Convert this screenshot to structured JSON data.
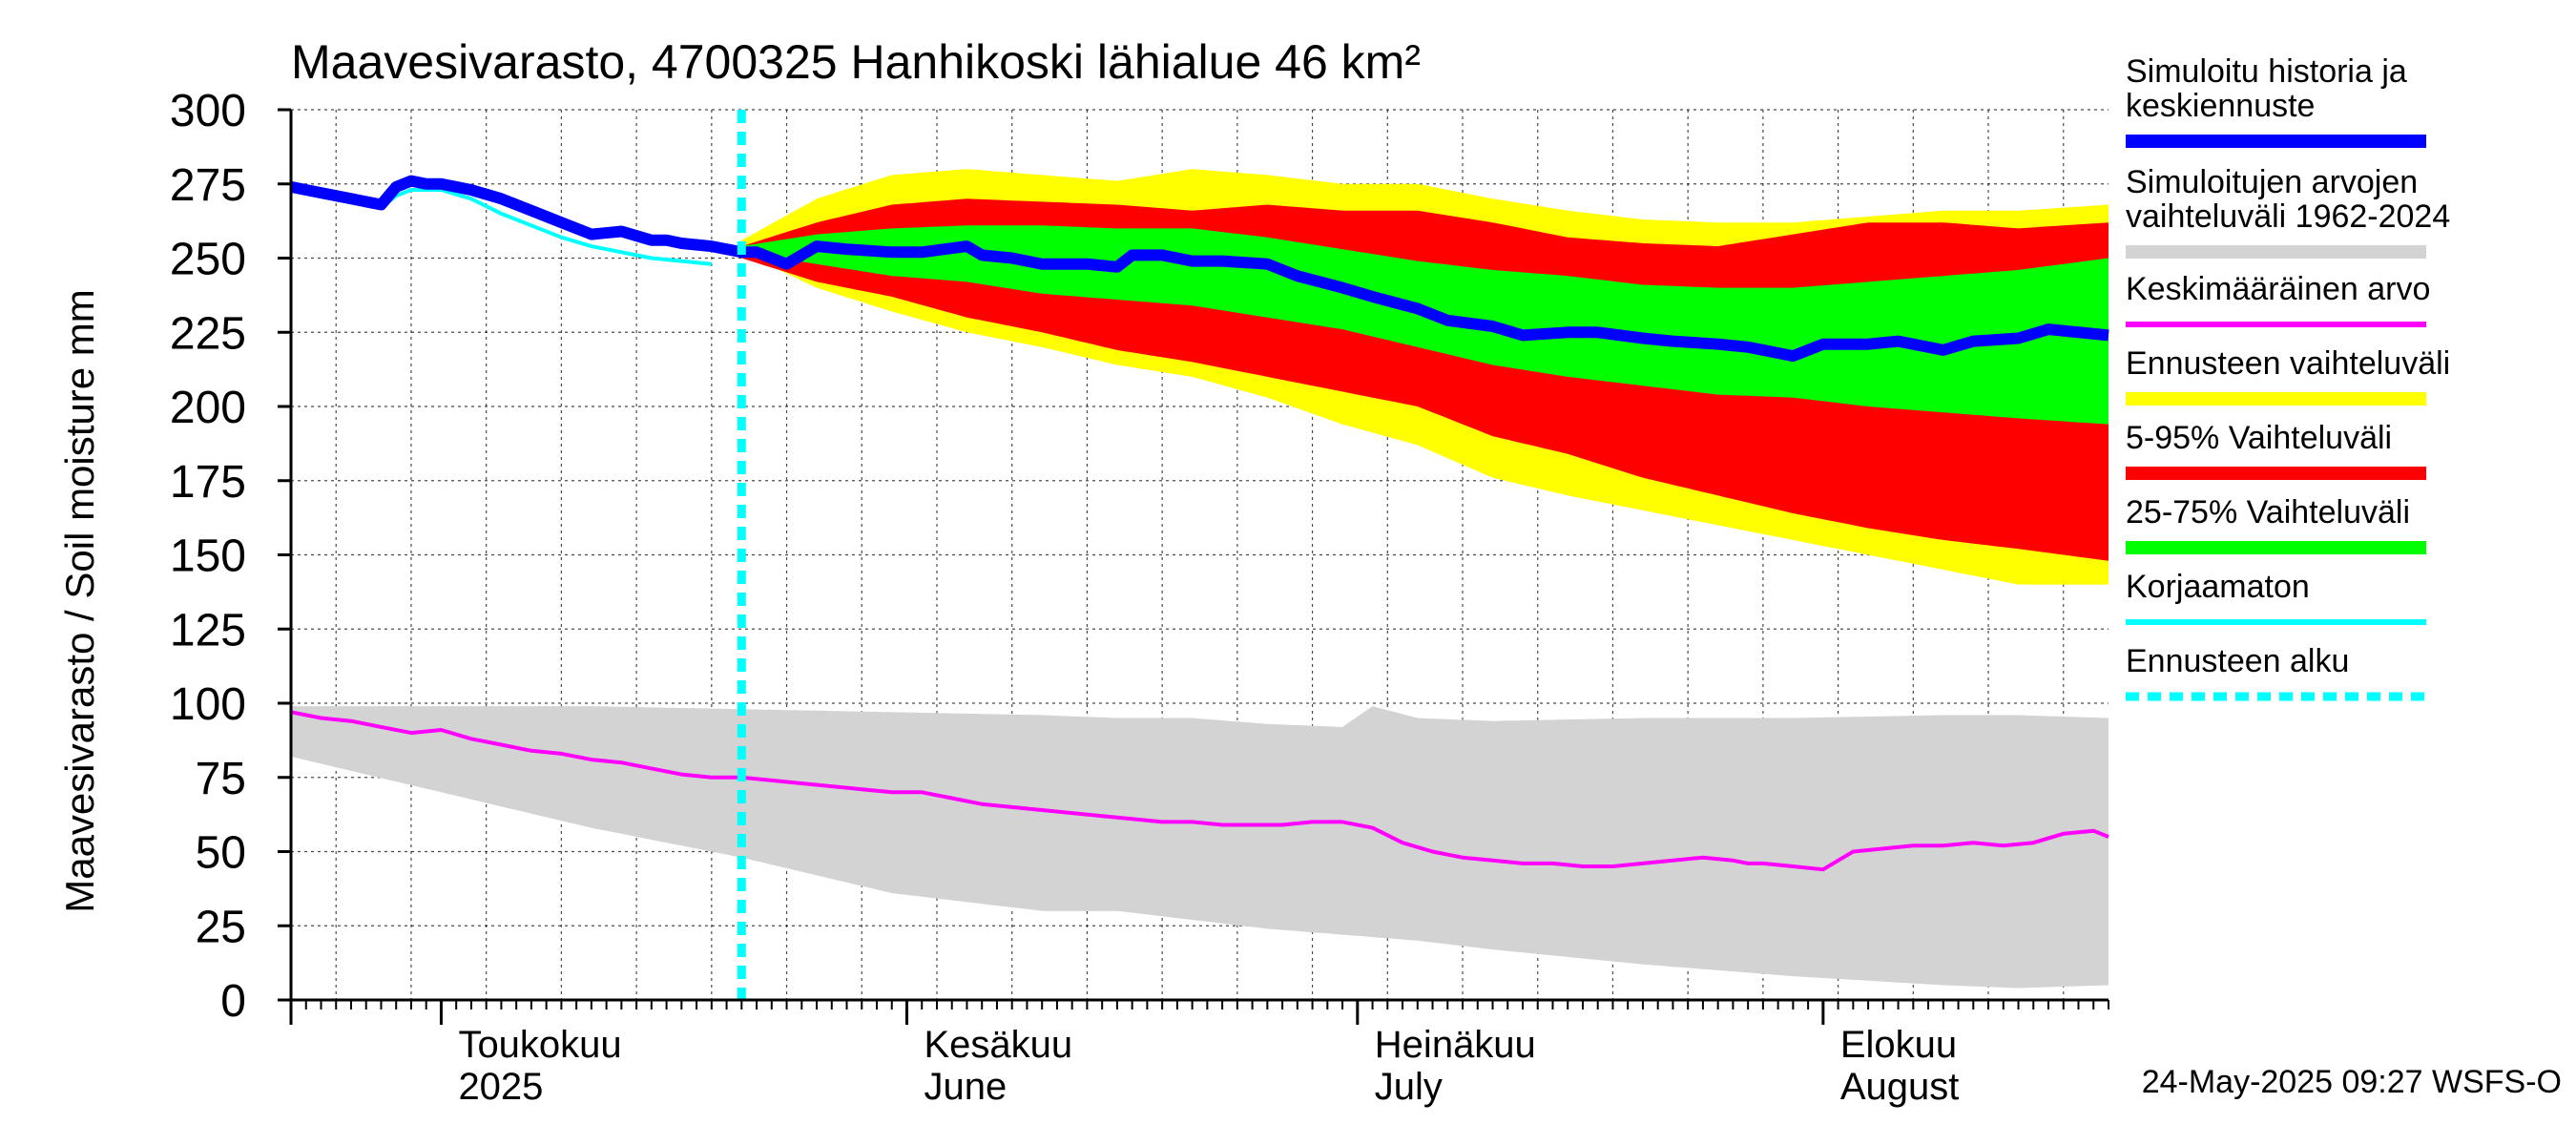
{
  "chart_data": {
    "type": "area",
    "title": "Maavesivarasto, 4700325 Hanhikoski lähialue 46 km²",
    "ylabel": "Maavesivarasto / Soil moisture   mm",
    "ylim": [
      0,
      300
    ],
    "yticks": [
      0,
      25,
      50,
      75,
      100,
      125,
      150,
      175,
      200,
      225,
      250,
      275,
      300
    ],
    "x_day_range": [
      0,
      121
    ],
    "forecast_start_day": 30,
    "month_ticks": [
      {
        "day": 0,
        "fi": "",
        "en": ""
      },
      {
        "day": 10,
        "fi": "Toukokuu",
        "en": "2025"
      },
      {
        "day": 41,
        "fi": "Kesäkuu",
        "en": "June"
      },
      {
        "day": 71,
        "fi": "Heinäkuu",
        "en": "July"
      },
      {
        "day": 102,
        "fi": "Elokuu",
        "en": "August"
      }
    ],
    "legend": [
      {
        "label": "Simuloitu historia ja keskiennuste",
        "lines": [
          "Simuloitu historia ja",
          "keskiennuste"
        ],
        "color": "#0000ff",
        "style": "thick"
      },
      {
        "label": "Simuloitujen arvojen vaihteluväli 1962-2024",
        "lines": [
          "Simuloitujen arvojen",
          "vaihteluväli 1962-2024"
        ],
        "color": "#d3d3d3",
        "style": "band"
      },
      {
        "label": "Keskimääräinen arvo",
        "lines": [
          "Keskimääräinen arvo"
        ],
        "color": "#ff00ff",
        "style": "thin"
      },
      {
        "label": "Ennusteen vaihteluväli",
        "lines": [
          "Ennusteen vaihteluväli"
        ],
        "color": "#ffff00",
        "style": "band"
      },
      {
        "label": "5-95% Vaihteluväli",
        "lines": [
          "5-95% Vaihteluväli"
        ],
        "color": "#ff0000",
        "style": "band"
      },
      {
        "label": "25-75% Vaihteluväli",
        "lines": [
          "25-75% Vaihteluväli"
        ],
        "color": "#00ff00",
        "style": "band"
      },
      {
        "label": "Korjaamaton",
        "lines": [
          "Korjaamaton"
        ],
        "color": "#00ffff",
        "style": "thin"
      },
      {
        "label": "Ennusteen alku",
        "lines": [
          "Ennusteen alku"
        ],
        "color": "#00ffff",
        "style": "dashed"
      }
    ],
    "footer": "24-May-2025 09:27 WSFS-O",
    "series": [
      {
        "name": "Simulated history and median forecast",
        "x": [
          0,
          2,
          4,
          6,
          7,
          8,
          9,
          10,
          12,
          14,
          16,
          18,
          20,
          22,
          24,
          25,
          26,
          28,
          30,
          31,
          33,
          35,
          37,
          40,
          42,
          45,
          46,
          48,
          50,
          53,
          55,
          56,
          58,
          60,
          62,
          65,
          67,
          70,
          72,
          75,
          77,
          80,
          82,
          85,
          87,
          90,
          92,
          95,
          97,
          100,
          102,
          105,
          107,
          110,
          112,
          115,
          117,
          121
        ],
        "values": [
          274,
          272,
          270,
          268,
          274,
          276,
          275,
          275,
          273,
          270,
          266,
          262,
          258,
          259,
          256,
          256,
          255,
          254,
          252,
          252,
          248,
          254,
          253,
          252,
          252,
          254,
          251,
          250,
          248,
          248,
          247,
          251,
          251,
          249,
          249,
          248,
          244,
          240,
          237,
          233,
          229,
          227,
          224,
          225,
          225,
          223,
          222,
          221,
          220,
          217,
          221,
          221,
          222,
          219,
          222,
          223,
          226,
          224
        ]
      },
      {
        "name": "Uncorrected",
        "x": [
          0,
          2,
          4,
          6,
          7,
          8,
          10,
          12,
          14,
          16,
          18,
          20,
          22,
          24,
          26,
          28
        ],
        "values": [
          274,
          271,
          269,
          267,
          271,
          273,
          273,
          270,
          265,
          261,
          257,
          254,
          252,
          250,
          249,
          248
        ]
      },
      {
        "name": "Mean",
        "x": [
          0,
          2,
          4,
          6,
          8,
          10,
          12,
          14,
          16,
          18,
          20,
          22,
          24,
          26,
          28,
          30,
          32,
          34,
          36,
          38,
          40,
          42,
          44,
          46,
          48,
          50,
          52,
          54,
          56,
          58,
          60,
          62,
          64,
          66,
          68,
          70,
          72,
          74,
          76,
          78,
          80,
          82,
          84,
          86,
          88,
          90,
          92,
          94,
          96,
          97,
          98,
          100,
          102,
          104,
          106,
          108,
          110,
          112,
          114,
          116,
          118,
          120,
          121
        ],
        "values": [
          97,
          95,
          94,
          92,
          90,
          91,
          88,
          86,
          84,
          83,
          81,
          80,
          78,
          76,
          75,
          75,
          74,
          73,
          72,
          71,
          70,
          70,
          68,
          66,
          65,
          64,
          63,
          62,
          61,
          60,
          60,
          59,
          59,
          59,
          60,
          60,
          58,
          53,
          50,
          48,
          47,
          46,
          46,
          45,
          45,
          46,
          47,
          48,
          47,
          46,
          46,
          45,
          44,
          50,
          51,
          52,
          52,
          53,
          52,
          53,
          56,
          57,
          55
        ]
      },
      {
        "name": "Historical range 1962-2024 (min)",
        "x": [
          0,
          10,
          20,
          30,
          40,
          50,
          55,
          60,
          65,
          70,
          75,
          80,
          90,
          100,
          110,
          115,
          121
        ],
        "values": [
          82,
          70,
          58,
          48,
          36,
          30,
          30,
          27,
          24,
          22,
          20,
          17,
          12,
          8,
          5,
          4,
          5
        ]
      },
      {
        "name": "Historical range 1962-2024 (max)",
        "x": [
          0,
          10,
          20,
          30,
          40,
          50,
          55,
          60,
          65,
          70,
          72,
          75,
          80,
          90,
          100,
          110,
          115,
          121
        ],
        "values": [
          99,
          99,
          99,
          98,
          97,
          96,
          95,
          95,
          93,
          92,
          99,
          95,
          94,
          95,
          95,
          96,
          96,
          95
        ]
      },
      {
        "name": "Forecast range (min)",
        "x": [
          30,
          35,
          40,
          45,
          50,
          55,
          60,
          65,
          70,
          75,
          80,
          85,
          90,
          95,
          100,
          105,
          110,
          115,
          121
        ],
        "values": [
          252,
          240,
          232,
          225,
          220,
          214,
          210,
          203,
          194,
          187,
          176,
          170,
          165,
          160,
          155,
          150,
          145,
          140,
          140
        ]
      },
      {
        "name": "Forecast range (max)",
        "x": [
          30,
          35,
          40,
          45,
          50,
          55,
          60,
          65,
          70,
          75,
          80,
          85,
          90,
          95,
          100,
          105,
          110,
          115,
          121
        ],
        "values": [
          256,
          270,
          278,
          280,
          278,
          276,
          280,
          278,
          275,
          275,
          270,
          266,
          263,
          262,
          262,
          264,
          266,
          266,
          268
        ]
      },
      {
        "name": "5-95% range (min)",
        "x": [
          30,
          35,
          40,
          45,
          50,
          55,
          60,
          65,
          70,
          75,
          80,
          85,
          90,
          95,
          100,
          105,
          110,
          115,
          121
        ],
        "values": [
          250,
          242,
          237,
          230,
          225,
          219,
          215,
          210,
          205,
          200,
          190,
          184,
          176,
          170,
          164,
          159,
          155,
          152,
          148
        ]
      },
      {
        "name": "5-95% range (max)",
        "x": [
          30,
          35,
          40,
          45,
          50,
          55,
          60,
          65,
          70,
          75,
          80,
          85,
          90,
          95,
          100,
          105,
          110,
          115,
          121
        ],
        "values": [
          254,
          262,
          268,
          270,
          269,
          268,
          266,
          268,
          266,
          266,
          262,
          257,
          255,
          254,
          258,
          262,
          262,
          260,
          262
        ]
      },
      {
        "name": "25-75% range (min)",
        "x": [
          30,
          35,
          40,
          45,
          50,
          55,
          60,
          65,
          70,
          75,
          80,
          85,
          90,
          95,
          100,
          105,
          110,
          115,
          121
        ],
        "values": [
          252,
          248,
          244,
          242,
          238,
          236,
          234,
          230,
          226,
          220,
          214,
          210,
          207,
          204,
          203,
          200,
          198,
          196,
          194
        ]
      },
      {
        "name": "25-75% range (max)",
        "x": [
          30,
          35,
          40,
          45,
          50,
          55,
          60,
          65,
          70,
          75,
          80,
          85,
          90,
          95,
          100,
          105,
          110,
          115,
          121
        ],
        "values": [
          254,
          258,
          260,
          261,
          261,
          260,
          260,
          257,
          253,
          249,
          246,
          244,
          241,
          240,
          240,
          242,
          244,
          246,
          250
        ]
      }
    ]
  }
}
